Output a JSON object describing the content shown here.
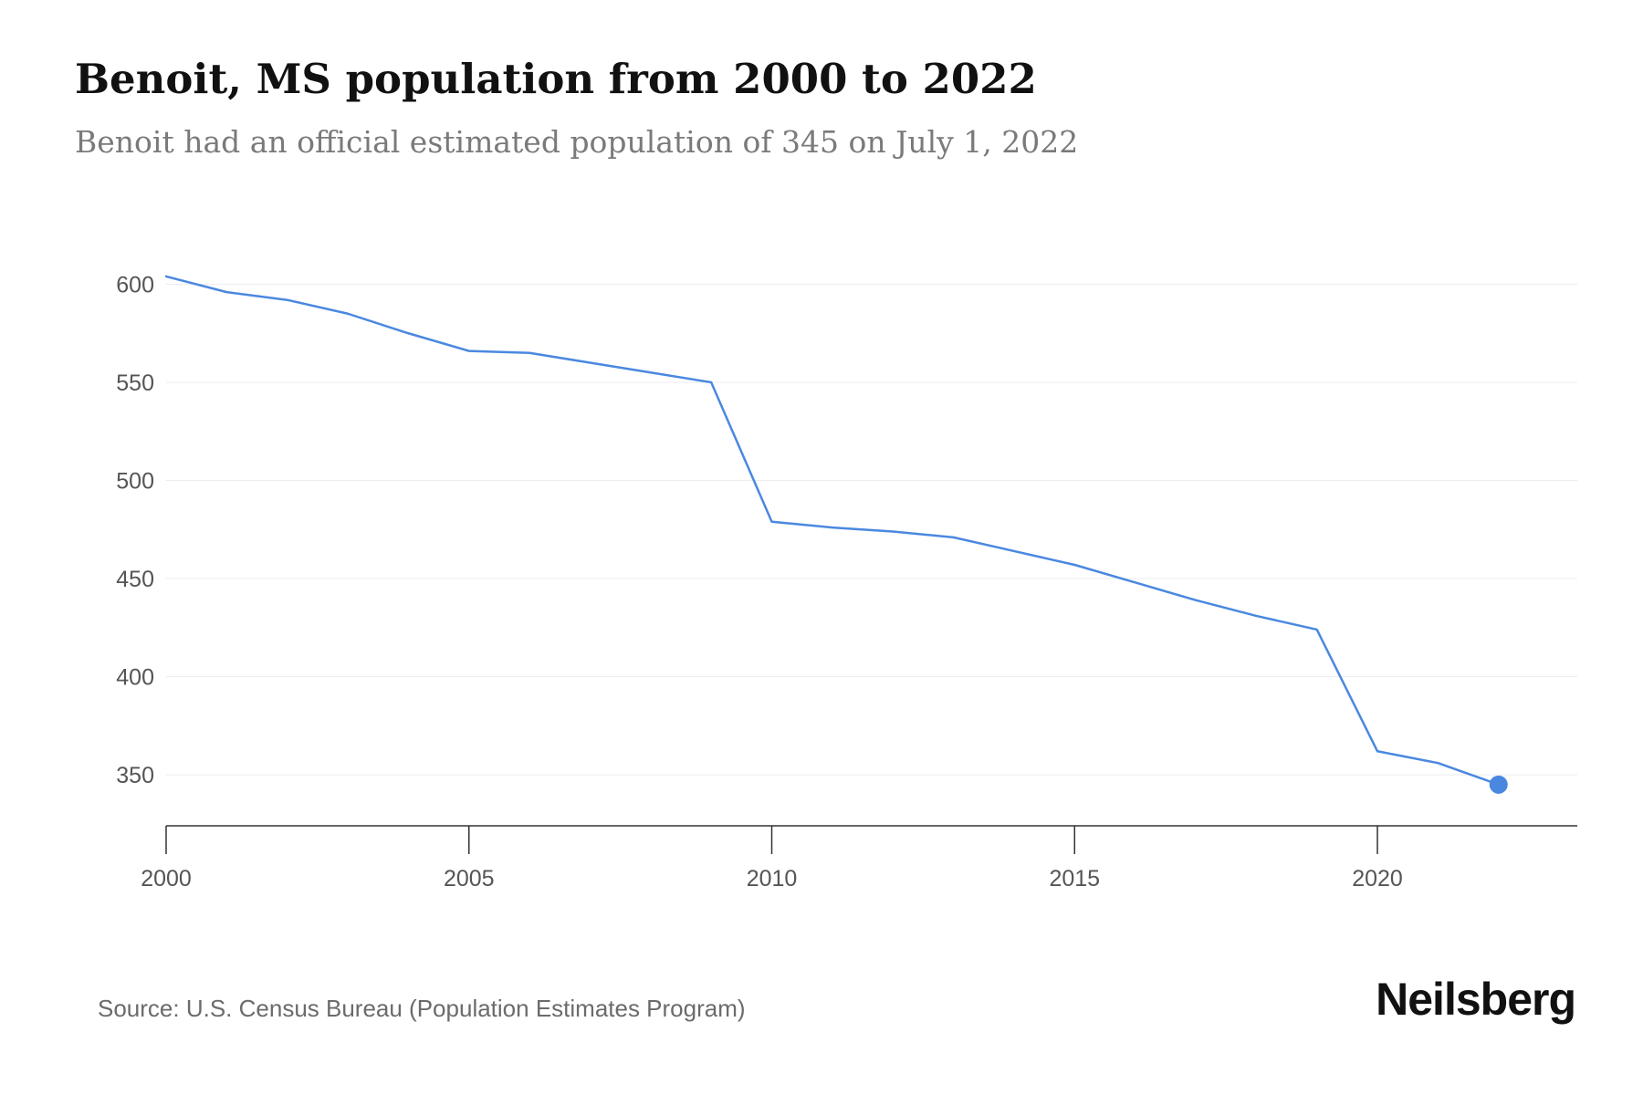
{
  "title": "Benoit, MS population from 2000 to 2022",
  "subtitle": "Benoit had an official estimated population of 345 on July 1, 2022",
  "source": "Source: U.S. Census Bureau (Population Estimates Program)",
  "brand": "Neilsberg",
  "colors": {
    "line": "#4a88e0",
    "grid": "#ececec",
    "axis": "#333333",
    "tick_text": "#555555"
  },
  "chart_data": {
    "type": "line",
    "x": [
      2000,
      2001,
      2002,
      2003,
      2004,
      2005,
      2006,
      2007,
      2008,
      2009,
      2010,
      2011,
      2012,
      2013,
      2014,
      2015,
      2016,
      2017,
      2018,
      2019,
      2020,
      2021,
      2022
    ],
    "series": [
      {
        "values": [
          604,
          596,
          592,
          585,
          575,
          566,
          565,
          560,
          555,
          550,
          479,
          476,
          474,
          471,
          464,
          457,
          448,
          439,
          431,
          424,
          362,
          356,
          345
        ]
      }
    ],
    "highlight_last_point": true,
    "xticks": [
      2000,
      2005,
      2010,
      2015,
      2020
    ],
    "xlim": [
      2000,
      2023.3
    ],
    "yticks": [
      350,
      400,
      450,
      500,
      550,
      600
    ],
    "ylim": [
      324,
      610
    ],
    "grid": true
  }
}
